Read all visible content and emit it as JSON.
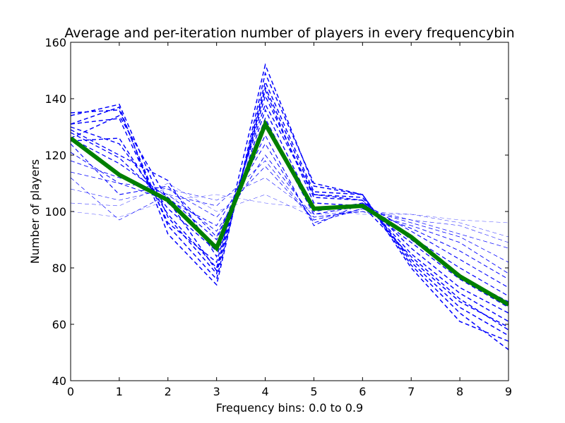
{
  "chart_data": {
    "type": "line",
    "title": "Average and per-iteration number of players in every frequencybin",
    "xlabel": "Frequency bins: 0.0 to 0.9",
    "ylabel": "Number of players",
    "xlim": [
      0,
      9
    ],
    "ylim": [
      40,
      160
    ],
    "x": [
      0,
      1,
      2,
      3,
      4,
      5,
      6,
      7,
      8,
      9
    ],
    "xticks": [
      "0",
      "1",
      "2",
      "3",
      "4",
      "5",
      "6",
      "7",
      "8",
      "9"
    ],
    "yticks": [
      "40",
      "60",
      "80",
      "100",
      "120",
      "140",
      "160"
    ],
    "grid": false,
    "colors": {
      "iterations": "#0000ff",
      "average": "#007f00"
    },
    "iterations": [
      {
        "values": [
          100,
          98,
          104,
          106,
          103,
          101,
          99,
          99,
          97,
          96
        ],
        "width": 0.35
      },
      {
        "values": [
          103,
          102,
          110,
          100,
          106,
          98,
          100,
          99,
          96,
          91
        ],
        "width": 0.45
      },
      {
        "values": [
          108,
          104,
          108,
          104,
          112,
          99,
          100,
          97,
          95,
          89
        ],
        "width": 0.55
      },
      {
        "values": [
          112,
          97,
          106,
          102,
          118,
          97,
          101,
          97,
          92,
          87
        ],
        "width": 0.7
      },
      {
        "values": [
          114,
          110,
          108,
          98,
          116,
          97,
          101,
          96,
          91,
          82
        ],
        "width": 0.8
      },
      {
        "values": [
          118,
          112,
          106,
          93,
          120,
          98,
          100,
          95,
          89,
          78
        ],
        "width": 0.9
      },
      {
        "values": [
          121,
          110,
          104,
          95,
          124,
          96,
          101,
          94,
          86,
          76
        ],
        "width": 1.0
      },
      {
        "values": [
          124,
          106,
          109,
          91,
          127,
          95,
          103,
          93,
          83,
          73
        ],
        "width": 1.1
      },
      {
        "values": [
          126,
          117,
          105,
          90,
          131,
          99,
          102,
          91,
          80,
          70
        ],
        "width": 1.2
      },
      {
        "values": [
          128,
          119,
          103,
          88,
          133,
          100,
          103,
          90,
          77,
          68
        ],
        "width": 1.3
      },
      {
        "values": [
          129,
          120,
          111,
          84,
          136,
          101,
          102,
          89,
          76,
          66
        ],
        "width": 1.35
      },
      {
        "values": [
          130,
          124,
          101,
          86,
          138,
          106,
          104,
          87,
          73,
          64
        ],
        "width": 1.4
      },
      {
        "values": [
          131,
          133,
          96,
          82,
          141,
          105,
          104,
          85,
          71,
          61
        ],
        "width": 1.45
      },
      {
        "values": [
          134,
          138,
          98,
          78,
          144,
          106,
          105,
          83,
          68,
          59
        ],
        "width": 1.5
      },
      {
        "values": [
          135,
          136,
          95,
          76,
          146,
          107,
          106,
          82,
          66,
          56
        ],
        "width": 1.5
      },
      {
        "values": [
          131,
          137,
          92,
          74,
          149,
          110,
          106,
          80,
          61,
          54
        ],
        "width": 1.5
      },
      {
        "values": [
          126,
          134,
          104,
          79,
          152,
          109,
          106,
          81,
          64,
          51
        ],
        "width": 1.5
      },
      {
        "values": [
          125,
          126,
          99,
          80,
          143,
          103,
          102,
          84,
          69,
          58
        ],
        "width": 1.45
      }
    ],
    "average": {
      "values": [
        126,
        113,
        104,
        87,
        131,
        101,
        102,
        91,
        77,
        67
      ]
    }
  }
}
